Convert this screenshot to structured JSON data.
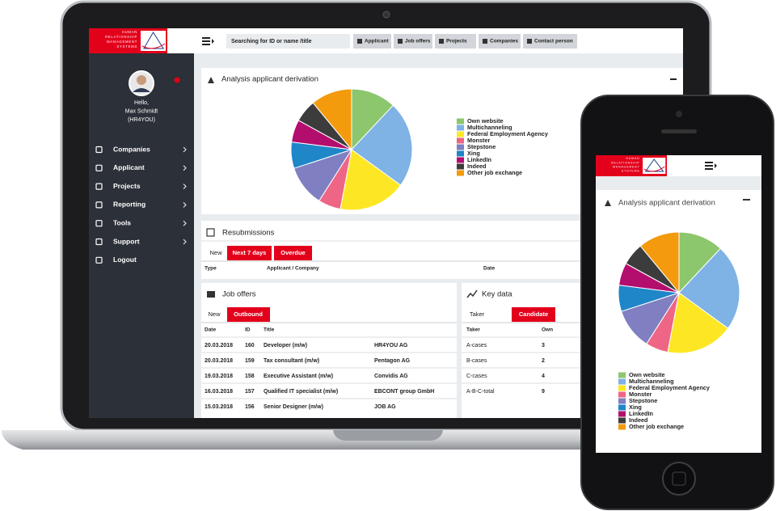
{
  "laptop": {
    "logo_text": [
      "HUMAN",
      "RELATIONSHIP",
      "MANAGEMENT",
      "SYSTEMS"
    ],
    "search_placeholder": "Searching for ID or name /title",
    "nav_buttons": [
      "Applicant",
      "Job offers",
      "Projects",
      "Companies",
      "Contact person"
    ],
    "user": {
      "greeting": "Hello,",
      "name": "Max Schmidt",
      "company": "(HR4YOU)"
    },
    "menu": [
      "Companies",
      "Applicant",
      "Projects",
      "Reporting",
      "Tools",
      "Support",
      "Logout"
    ],
    "resubmissions": {
      "title": "Resubmissions",
      "tabs": [
        "New",
        "Next 7 days",
        "Overdue"
      ],
      "columns": [
        "Type",
        "Applicant / Company",
        "Date"
      ]
    },
    "job_offers": {
      "title": "Job offers",
      "tabs": [
        "New",
        "Outbound"
      ],
      "columns": [
        "Date",
        "ID",
        "Title"
      ],
      "rows": [
        [
          "20.03.2018",
          "160",
          "Developer (m/w)",
          "HR4YOU AG"
        ],
        [
          "20.03.2018",
          "159",
          "Tax consultant (m/w)",
          "Pentagon AG"
        ],
        [
          "19.03.2018",
          "158",
          "Executive Assistant (m/w)",
          "Convidis AG"
        ],
        [
          "16.03.2018",
          "157",
          "Qualified IT specialist (m/w)",
          "EBCONT group GmbH"
        ],
        [
          "15.03.2018",
          "156",
          "Senior Designer (m/w)",
          "JOB AG"
        ]
      ]
    },
    "key_data": {
      "title": "Key data",
      "tabs": [
        "Taker",
        "Candidate"
      ],
      "columns": [
        "Taker",
        "Own"
      ],
      "rows": [
        [
          "A-cases",
          "3"
        ],
        [
          "B-cases",
          "2"
        ],
        [
          "C-cases",
          "4"
        ],
        [
          "A-B-C-total",
          "9"
        ]
      ]
    }
  },
  "derivation": {
    "type": "pie",
    "title": "Analysis applicant derivation",
    "categories": [
      "Own website",
      "Multichanneling",
      "Federal Employment Agency",
      "Monster",
      "Stepstone",
      "Xing",
      "LinkedIn",
      "Indeed",
      "Other job exchange"
    ],
    "values": [
      12,
      23,
      18,
      6,
      11,
      7,
      6,
      6,
      11
    ],
    "colors": [
      "#8cc66d",
      "#7fb2e5",
      "#fde724",
      "#ee6585",
      "#7f7fc2",
      "#1f86c8",
      "#b30d6e",
      "#3c3c3c",
      "#f39a0d"
    ]
  }
}
